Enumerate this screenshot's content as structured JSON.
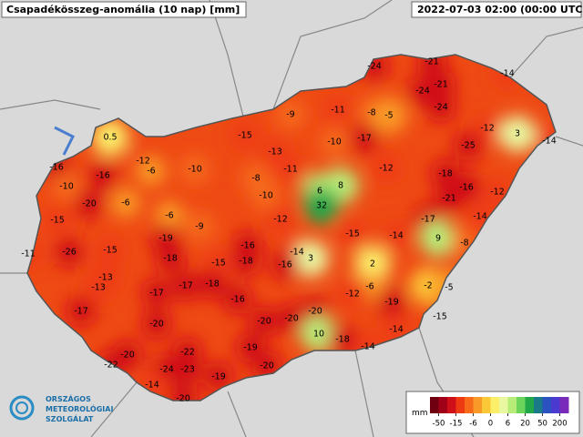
{
  "header": {
    "title": "Csapadékösszeg-anomália (10 nap) [mm]",
    "timestamp": "2022-07-03 02:00 (00:00 UTC)"
  },
  "logo": {
    "lines": [
      "ORSZÁGOS",
      "METEOROLÓGIAI",
      "SZOLGÁLAT"
    ]
  },
  "map": {
    "stations": [
      -24,
      -21,
      -14,
      -24,
      -21,
      -24,
      -9,
      -11,
      -8,
      -5,
      -12,
      3,
      -14,
      0.5,
      -15,
      -10,
      -17,
      -25,
      -16,
      -12,
      -6,
      -10,
      -13,
      -11,
      -12,
      -16,
      -8,
      -18,
      -10,
      -20,
      -6,
      -10,
      6,
      8,
      -16,
      -12,
      32,
      -21,
      -6,
      -12,
      -15,
      -9,
      -17,
      -14,
      -19,
      -15,
      -14,
      9,
      -8,
      -11,
      -26,
      -15,
      -16,
      -14,
      3,
      -18,
      -15,
      -18,
      -16,
      2,
      -13,
      -18,
      -13,
      -17,
      -17,
      -6,
      -2,
      -5,
      -12,
      -16,
      -19,
      -17,
      -20,
      -15,
      -20,
      -20,
      -20,
      -14,
      10,
      -18,
      -14,
      -19,
      -20,
      -22,
      -22,
      -24,
      -23,
      -20,
      -19,
      -14,
      -20
    ]
  },
  "legend": {
    "unit": "mm",
    "colors": [
      "#6e0010",
      "#a00018",
      "#d01018",
      "#ee3a12",
      "#f66a1a",
      "#f99a28",
      "#fbc838",
      "#fbef6a",
      "#e8f7a0",
      "#b8ec78",
      "#6cd45a",
      "#22a848",
      "#1a7a8a",
      "#2a52c0",
      "#4a3ad0",
      "#7a2ab8"
    ],
    "ticks": [
      -50,
      -15,
      -6,
      0,
      6,
      20,
      50,
      200
    ]
  }
}
